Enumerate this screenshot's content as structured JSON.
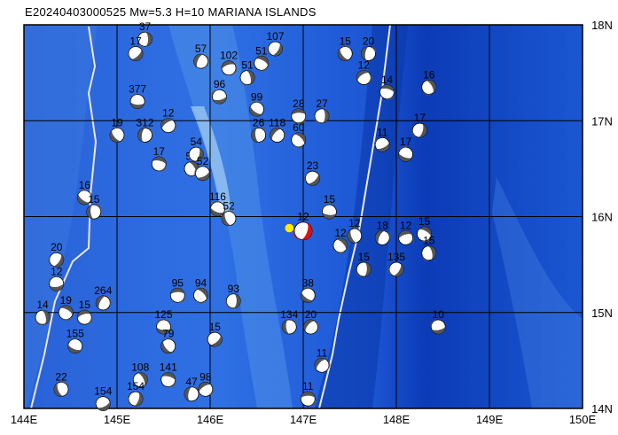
{
  "title": "E20240403000525 Mw=5.3 H=10 MARIANA ISLANDS",
  "colors": {
    "ocean_deep": "#0b3fbf",
    "ocean_mid": "#2e6be0",
    "ridge": "#7fb6ee",
    "trench_line": "#e6e6e6",
    "grid": "#000000",
    "target_mechanism": "#e01010",
    "volcano_marker": "#ffee00"
  },
  "axes": {
    "lon_labels": [
      "144E",
      "145E",
      "146E",
      "147E",
      "148E",
      "149E",
      "150E"
    ],
    "lat_labels": [
      "14N",
      "15N",
      "16N",
      "17N",
      "18N"
    ],
    "lon_range": [
      144,
      150
    ],
    "lat_range": [
      14,
      18
    ]
  },
  "events": [
    {
      "lon": 145.3,
      "lat": 17.85,
      "label": "37"
    },
    {
      "lon": 145.2,
      "lat": 17.7,
      "label": "17"
    },
    {
      "lon": 145.22,
      "lat": 17.2,
      "label": "377"
    },
    {
      "lon": 145.0,
      "lat": 16.85,
      "label": "19"
    },
    {
      "lon": 145.3,
      "lat": 16.85,
      "label": "312"
    },
    {
      "lon": 145.55,
      "lat": 16.95,
      "label": "12"
    },
    {
      "lon": 145.45,
      "lat": 16.55,
      "label": "17"
    },
    {
      "lon": 145.8,
      "lat": 16.5,
      "label": "53"
    },
    {
      "lon": 145.85,
      "lat": 16.65,
      "label": "54"
    },
    {
      "lon": 145.92,
      "lat": 16.45,
      "label": "52"
    },
    {
      "lon": 146.08,
      "lat": 16.08,
      "label": "116"
    },
    {
      "lon": 146.2,
      "lat": 15.98,
      "label": "52"
    },
    {
      "lon": 145.9,
      "lat": 17.62,
      "label": "57"
    },
    {
      "lon": 146.2,
      "lat": 17.55,
      "label": "102"
    },
    {
      "lon": 146.55,
      "lat": 17.6,
      "label": "51"
    },
    {
      "lon": 146.4,
      "lat": 17.45,
      "label": "51"
    },
    {
      "lon": 146.7,
      "lat": 17.75,
      "label": "107"
    },
    {
      "lon": 146.1,
      "lat": 17.25,
      "label": "96"
    },
    {
      "lon": 146.5,
      "lat": 17.12,
      "label": "99"
    },
    {
      "lon": 146.52,
      "lat": 16.85,
      "label": "26"
    },
    {
      "lon": 146.72,
      "lat": 16.85,
      "label": "118"
    },
    {
      "lon": 146.95,
      "lat": 17.05,
      "label": "28"
    },
    {
      "lon": 146.95,
      "lat": 16.8,
      "label": "60"
    },
    {
      "lon": 147.2,
      "lat": 17.05,
      "label": "27"
    },
    {
      "lon": 147.1,
      "lat": 16.4,
      "label": "23"
    },
    {
      "lon": 147.28,
      "lat": 16.05,
      "label": "15"
    },
    {
      "lon": 147.45,
      "lat": 17.7,
      "label": "15"
    },
    {
      "lon": 147.7,
      "lat": 17.7,
      "label": "20"
    },
    {
      "lon": 147.65,
      "lat": 17.45,
      "label": "12"
    },
    {
      "lon": 147.9,
      "lat": 17.3,
      "label": "14"
    },
    {
      "lon": 148.35,
      "lat": 17.35,
      "label": "16"
    },
    {
      "lon": 148.25,
      "lat": 16.9,
      "label": "17"
    },
    {
      "lon": 147.85,
      "lat": 16.75,
      "label": "11"
    },
    {
      "lon": 148.1,
      "lat": 16.65,
      "label": "17"
    },
    {
      "lon": 147.55,
      "lat": 15.8,
      "label": "12"
    },
    {
      "lon": 147.85,
      "lat": 15.78,
      "label": "18"
    },
    {
      "lon": 148.1,
      "lat": 15.78,
      "label": "12"
    },
    {
      "lon": 148.3,
      "lat": 15.82,
      "label": "15"
    },
    {
      "lon": 148.35,
      "lat": 15.62,
      "label": "15"
    },
    {
      "lon": 148.0,
      "lat": 15.45,
      "label": "135"
    },
    {
      "lon": 148.45,
      "lat": 14.85,
      "label": "10"
    },
    {
      "lon": 147.05,
      "lat": 15.18,
      "label": "38"
    },
    {
      "lon": 146.85,
      "lat": 14.85,
      "label": "134"
    },
    {
      "lon": 147.08,
      "lat": 14.85,
      "label": "20"
    },
    {
      "lon": 145.65,
      "lat": 15.18,
      "label": "95"
    },
    {
      "lon": 145.9,
      "lat": 15.18,
      "label": "94"
    },
    {
      "lon": 146.25,
      "lat": 15.12,
      "label": "93"
    },
    {
      "lon": 146.05,
      "lat": 14.72,
      "label": "15"
    },
    {
      "lon": 145.5,
      "lat": 14.85,
      "label": "125"
    },
    {
      "lon": 145.55,
      "lat": 14.65,
      "label": "79"
    },
    {
      "lon": 145.8,
      "lat": 14.15,
      "label": "47"
    },
    {
      "lon": 145.95,
      "lat": 14.2,
      "label": "98"
    },
    {
      "lon": 145.55,
      "lat": 14.3,
      "label": "141"
    },
    {
      "lon": 145.25,
      "lat": 14.3,
      "label": "108"
    },
    {
      "lon": 145.2,
      "lat": 14.1,
      "label": "154"
    },
    {
      "lon": 144.85,
      "lat": 14.05,
      "label": "154"
    },
    {
      "lon": 144.55,
      "lat": 14.65,
      "label": "155"
    },
    {
      "lon": 144.4,
      "lat": 14.2,
      "label": "22"
    },
    {
      "lon": 144.85,
      "lat": 15.1,
      "label": "264"
    },
    {
      "lon": 144.65,
      "lat": 14.95,
      "label": "15"
    },
    {
      "lon": 144.45,
      "lat": 15.0,
      "label": "19"
    },
    {
      "lon": 144.2,
      "lat": 14.95,
      "label": "14"
    },
    {
      "lon": 144.35,
      "lat": 15.55,
      "label": "20"
    },
    {
      "lon": 144.35,
      "lat": 15.3,
      "label": "12"
    },
    {
      "lon": 144.65,
      "lat": 16.2,
      "label": "16"
    },
    {
      "lon": 144.75,
      "lat": 16.05,
      "label": "15"
    },
    {
      "lon": 147.2,
      "lat": 14.45,
      "label": "11"
    },
    {
      "lon": 147.05,
      "lat": 14.1,
      "label": "11"
    },
    {
      "lon": 147.4,
      "lat": 15.7,
      "label": "12"
    },
    {
      "lon": 147.65,
      "lat": 15.45,
      "label": "15"
    }
  ],
  "target": {
    "lon": 147.0,
    "lat": 15.85,
    "label": "12"
  },
  "volcano": {
    "lon": 146.85,
    "lat": 15.88
  }
}
